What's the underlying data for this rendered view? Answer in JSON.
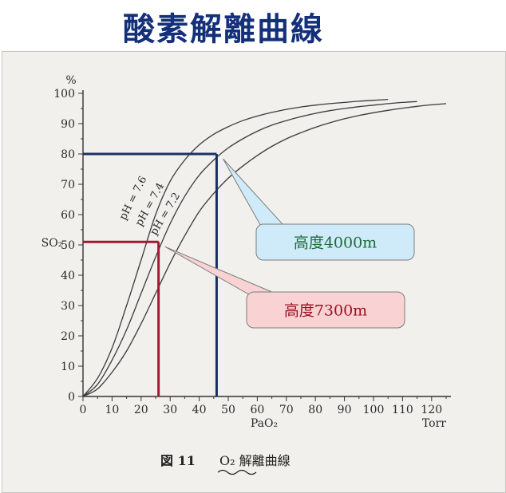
{
  "slide": {
    "title": "酸素解離曲線"
  },
  "chart_data": {
    "type": "line",
    "x": [
      0,
      5,
      10,
      15,
      20,
      25,
      30,
      35,
      40,
      45,
      50,
      55,
      60,
      65,
      70,
      75,
      80,
      85,
      90,
      95,
      100,
      105,
      110,
      115,
      120,
      125
    ],
    "series": [
      {
        "name": "pH = 7.6",
        "values": [
          0,
          6,
          16,
          30,
          45,
          60,
          71,
          78,
          83,
          86.5,
          89,
          91,
          92.5,
          93.7,
          94.7,
          95.5,
          96.1,
          96.6,
          97,
          97.4,
          97.7,
          98,
          null,
          null,
          null,
          null
        ]
      },
      {
        "name": "pH = 7.4",
        "values": [
          0,
          4,
          12,
          22,
          34,
          46,
          57,
          66,
          73,
          78,
          82,
          85,
          87.5,
          89.5,
          91,
          92.3,
          93.4,
          94.3,
          95,
          95.6,
          96.1,
          96.6,
          97,
          97.3,
          null,
          null
        ]
      },
      {
        "name": "pH = 7.2",
        "values": [
          0,
          2.5,
          8,
          15,
          24,
          34,
          44,
          53,
          61,
          67,
          72,
          76,
          79.5,
          82.5,
          85,
          87,
          88.8,
          90.3,
          91.6,
          92.7,
          93.6,
          94.4,
          95.1,
          95.7,
          96.2,
          96.6
        ]
      }
    ],
    "xlabel": "PaO₂",
    "xunit": "Torr",
    "ylabel": "SO₂",
    "yunit": "%",
    "xlim": [
      0,
      125
    ],
    "ylim": [
      0,
      100
    ],
    "xticks": [
      0,
      10,
      20,
      30,
      40,
      50,
      60,
      70,
      80,
      90,
      100,
      110,
      120
    ],
    "yticks": [
      0,
      10,
      20,
      30,
      40,
      50,
      60,
      70,
      80,
      90,
      100
    ],
    "grid": false,
    "annotations": [
      {
        "label": "高度4000m",
        "x": 46,
        "y": 80,
        "line_color": "#1a3160",
        "box_fill": "#cfeaf8",
        "text_color": "#1e6b3a"
      },
      {
        "label": "高度7300m",
        "x": 26,
        "y": 51,
        "line_color": "#a01a34",
        "box_fill": "#f9d3d3",
        "text_color": "#9a1024"
      }
    ],
    "caption": {
      "figure": "図 11",
      "text": "O₂ 解離曲線"
    }
  }
}
